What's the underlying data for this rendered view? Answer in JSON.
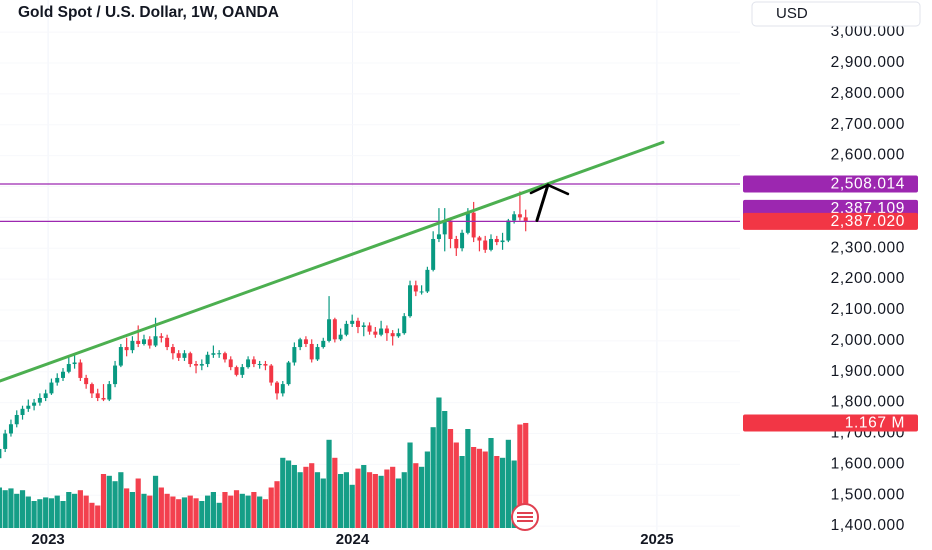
{
  "chart_data": {
    "type": "candlestick",
    "title": "Gold Spot / U.S. Dollar, 1W, OANDA",
    "currency": "USD",
    "xlim": [
      2022.842,
      2025.273
    ],
    "xticks": [
      2023,
      2024,
      2025
    ],
    "ylim": [
      1381,
      3104
    ],
    "yticks": [
      {
        "value": 1400,
        "label": "1,400.000"
      },
      {
        "value": 1500,
        "label": "1,500.000"
      },
      {
        "value": 1600,
        "label": "1,600.000"
      },
      {
        "value": 1700,
        "label": "1,700.000"
      },
      {
        "value": 1800,
        "label": "1,800.000"
      },
      {
        "value": 1900,
        "label": "1,900.000"
      },
      {
        "value": 2000,
        "label": "2,000.000"
      },
      {
        "value": 2100,
        "label": "2,100.000"
      },
      {
        "value": 2200,
        "label": "2,200.000"
      },
      {
        "value": 2300,
        "label": "2,300.000"
      },
      {
        "value": 2400,
        "label": "2,400.000"
      },
      {
        "value": 2500,
        "label": "2,500.000"
      },
      {
        "value": 2600,
        "label": "2,600.000"
      },
      {
        "value": 2700,
        "label": "2,700.000"
      },
      {
        "value": 2800,
        "label": "2,800.000"
      },
      {
        "value": 2900,
        "label": "2,900.000"
      },
      {
        "value": 3000,
        "label": "3,000.000"
      }
    ],
    "up_color": "#089981",
    "down_color": "#f23645",
    "x": [
      2022.84,
      2022.859,
      2022.878,
      2022.897,
      2022.916,
      2022.935,
      2022.954,
      2022.973,
      2022.992,
      2023.011,
      2023.03,
      2023.049,
      2023.068,
      2023.087,
      2023.106,
      2023.125,
      2023.144,
      2023.163,
      2023.182,
      2023.201,
      2023.22,
      2023.239,
      2023.258,
      2023.277,
      2023.296,
      2023.315,
      2023.334,
      2023.353,
      2023.372,
      2023.391,
      2023.41,
      2023.429,
      2023.448,
      2023.467,
      2023.486,
      2023.505,
      2023.524,
      2023.543,
      2023.562,
      2023.581,
      2023.6,
      2023.619,
      2023.638,
      2023.657,
      2023.676,
      2023.695,
      2023.714,
      2023.733,
      2023.752,
      2023.771,
      2023.79,
      2023.809,
      2023.828,
      2023.847,
      2023.866,
      2023.885,
      2023.904,
      2023.923,
      2023.942,
      2023.961,
      2023.98,
      2023.999,
      2024.018,
      2024.037,
      2024.056,
      2024.075,
      2024.094,
      2024.113,
      2024.132,
      2024.151,
      2024.17,
      2024.189,
      2024.208,
      2024.227,
      2024.246,
      2024.265,
      2024.284,
      2024.303,
      2024.322,
      2024.341,
      2024.36,
      2024.379,
      2024.398,
      2024.417,
      2024.436,
      2024.455,
      2024.474,
      2024.493,
      2024.512,
      2024.531,
      2024.55,
      2024.569
    ],
    "open": [
      1620,
      1650,
      1700,
      1730,
      1760,
      1780,
      1790,
      1800,
      1815,
      1830,
      1865,
      1880,
      1900,
      1925,
      1930,
      1880,
      1860,
      1830,
      1815,
      1810,
      1860,
      1920,
      1980,
      1970,
      2000,
      1990,
      2005,
      1985,
      2015,
      2010,
      1980,
      1960,
      1945,
      1960,
      1925,
      1920,
      1925,
      1955,
      1960,
      1960,
      1940,
      1915,
      1890,
      1915,
      1940,
      1925,
      1925,
      1920,
      1865,
      1830,
      1860,
      1930,
      1980,
      2005,
      1990,
      1940,
      1980,
      2000,
      2070,
      2005,
      2020,
      2055,
      2065,
      2045,
      2050,
      2030,
      2020,
      2040,
      2025,
      2015,
      2025,
      2080,
      2180,
      2160,
      2160,
      2230,
      2330,
      2345,
      2390,
      2330,
      2300,
      2350,
      2415,
      2335,
      2325,
      2295,
      2330,
      2320,
      2325,
      2390,
      2410,
      2400
    ],
    "high": [
      1665,
      1712,
      1745,
      1775,
      1790,
      1810,
      1812,
      1830,
      1842,
      1878,
      1895,
      1912,
      1950,
      1960,
      1940,
      1890,
      1865,
      1845,
      1860,
      1870,
      1935,
      1990,
      2010,
      2015,
      2050,
      2020,
      2015,
      2075,
      2025,
      2020,
      1990,
      1970,
      1970,
      1965,
      1935,
      1940,
      1965,
      1985,
      1970,
      1965,
      1950,
      1920,
      1925,
      1950,
      1950,
      1935,
      1935,
      1925,
      1870,
      1870,
      1935,
      1995,
      2010,
      2015,
      2005,
      1990,
      2010,
      2145,
      2075,
      2040,
      2065,
      2085,
      2075,
      2060,
      2060,
      2045,
      2065,
      2050,
      2035,
      2040,
      2090,
      2195,
      2195,
      2180,
      2240,
      2355,
      2430,
      2430,
      2400,
      2340,
      2360,
      2430,
      2450,
      2340,
      2340,
      2345,
      2340,
      2350,
      2395,
      2420,
      2484,
      2425
    ],
    "low": [
      1610,
      1640,
      1690,
      1720,
      1745,
      1770,
      1775,
      1790,
      1805,
      1825,
      1855,
      1870,
      1895,
      1910,
      1870,
      1845,
      1815,
      1805,
      1805,
      1805,
      1850,
      1915,
      1950,
      1960,
      1980,
      1985,
      1975,
      1980,
      1995,
      1970,
      1940,
      1935,
      1935,
      1915,
      1895,
      1905,
      1915,
      1945,
      1945,
      1930,
      1905,
      1885,
      1880,
      1910,
      1915,
      1910,
      1905,
      1855,
      1810,
      1820,
      1855,
      1920,
      1970,
      1980,
      1930,
      1935,
      1975,
      1995,
      1995,
      2000,
      2015,
      2045,
      2025,
      2015,
      2020,
      2010,
      2015,
      2000,
      1985,
      2010,
      2020,
      2075,
      2145,
      2150,
      2155,
      2225,
      2320,
      2290,
      2300,
      2275,
      2290,
      2345,
      2320,
      2290,
      2285,
      2290,
      2310,
      2295,
      2320,
      2380,
      2390,
      2355
    ],
    "close": [
      1650,
      1700,
      1730,
      1760,
      1780,
      1790,
      1800,
      1815,
      1830,
      1865,
      1880,
      1900,
      1925,
      1930,
      1880,
      1860,
      1830,
      1815,
      1810,
      1860,
      1920,
      1980,
      1970,
      2000,
      1990,
      2005,
      1985,
      2015,
      2010,
      1980,
      1960,
      1945,
      1960,
      1925,
      1920,
      1925,
      1955,
      1960,
      1960,
      1940,
      1915,
      1890,
      1915,
      1940,
      1925,
      1925,
      1920,
      1865,
      1830,
      1860,
      1930,
      1980,
      2005,
      1990,
      1940,
      1980,
      2000,
      2070,
      2005,
      2020,
      2055,
      2065,
      2045,
      2050,
      2030,
      2020,
      2040,
      2025,
      2015,
      2025,
      2080,
      2180,
      2160,
      2160,
      2230,
      2330,
      2345,
      2390,
      2330,
      2300,
      2350,
      2415,
      2335,
      2325,
      2295,
      2330,
      2320,
      2325,
      2390,
      2410,
      2400,
      2387.02
    ],
    "volume": [
      0.45,
      0.42,
      0.44,
      0.38,
      0.42,
      0.35,
      0.3,
      0.32,
      0.34,
      0.33,
      0.36,
      0.3,
      0.4,
      0.38,
      0.42,
      0.36,
      0.28,
      0.25,
      0.6,
      0.58,
      0.52,
      0.62,
      0.44,
      0.4,
      0.55,
      0.38,
      0.36,
      0.58,
      0.45,
      0.38,
      0.35,
      0.32,
      0.34,
      0.36,
      0.33,
      0.3,
      0.36,
      0.4,
      0.28,
      0.4,
      0.36,
      0.42,
      0.38,
      0.36,
      0.4,
      0.35,
      0.32,
      0.45,
      0.52,
      0.78,
      0.75,
      0.7,
      0.62,
      0.68,
      0.72,
      0.62,
      0.55,
      0.98,
      0.78,
      0.6,
      0.62,
      0.48,
      0.66,
      0.7,
      0.62,
      0.6,
      0.58,
      0.65,
      0.68,
      0.55,
      0.62,
      0.95,
      0.72,
      0.68,
      0.85,
      1.12,
      1.45,
      1.3,
      1.1,
      0.95,
      0.8,
      1.1,
      0.9,
      0.88,
      0.85,
      1.0,
      0.8,
      0.78,
      0.98,
      0.75,
      1.15,
      1.167
    ],
    "volume_ylim": [
      0,
      1.5
    ],
    "volume_last_label": "1.167 M",
    "last_price_label": "2,387.020",
    "price_lines": [
      {
        "value": 2508.014,
        "label": "2,508.014",
        "color": "#9c27b0"
      },
      {
        "value": 2387.109,
        "label": "2,387.109",
        "color": "#9c27b0"
      }
    ],
    "trend_line": {
      "x": [
        2022.842,
        2025.02
      ],
      "y": [
        1870,
        2643
      ],
      "color": "#4caf50"
    },
    "arrow": {
      "x": [
        2024.606,
        2024.642
      ],
      "y": [
        2390,
        2505
      ],
      "color": "#000000"
    }
  }
}
